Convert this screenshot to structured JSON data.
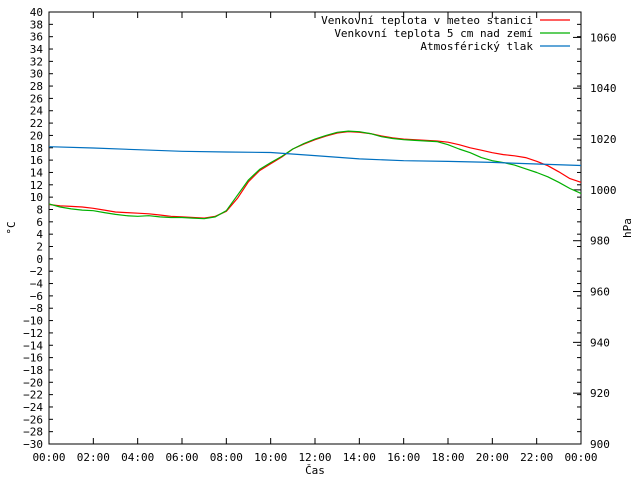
{
  "chart_data": {
    "type": "line",
    "xlabel": "Čas",
    "ylabel": "°C",
    "y2label": "hPa",
    "x_ticks": [
      "00:00",
      "02:00",
      "04:00",
      "06:00",
      "08:00",
      "10:00",
      "12:00",
      "14:00",
      "16:00",
      "18:00",
      "20:00",
      "22:00",
      "00:00"
    ],
    "xlim_hours": [
      0,
      24
    ],
    "ylim": [
      -30,
      40
    ],
    "y_ticks": [
      40,
      38,
      36,
      34,
      32,
      30,
      28,
      26,
      24,
      22,
      20,
      18,
      16,
      14,
      12,
      10,
      8,
      6,
      4,
      2,
      0,
      -2,
      -4,
      -6,
      -8,
      -10,
      -12,
      -14,
      -16,
      -18,
      -20,
      -22,
      -24,
      -26,
      -28,
      -30
    ],
    "y2lim": [
      900,
      1070
    ],
    "y2_ticks": [
      1060,
      1040,
      1020,
      1000,
      980,
      960,
      940,
      920,
      900
    ],
    "grid": false,
    "legend_position": "top-right",
    "series": [
      {
        "name": "Venkovní teplota v meteo stanici",
        "axis": "left",
        "color": "#ff0000",
        "x": [
          0,
          0.5,
          1,
          1.5,
          2,
          2.5,
          3,
          3.5,
          4,
          4.5,
          5,
          5.5,
          6,
          6.5,
          7,
          7.5,
          8,
          8.5,
          9,
          9.5,
          10,
          10.5,
          11,
          11.5,
          12,
          12.5,
          13,
          13.5,
          14,
          14.5,
          15,
          15.5,
          16,
          16.5,
          17,
          17.5,
          18,
          18.5,
          19,
          19.5,
          20,
          20.5,
          21,
          21.5,
          22,
          22.5,
          23,
          23.5,
          24
        ],
        "values": [
          8.8,
          8.6,
          8.5,
          8.4,
          8.2,
          7.9,
          7.6,
          7.5,
          7.4,
          7.3,
          7.1,
          6.9,
          6.8,
          6.7,
          6.6,
          6.9,
          7.7,
          9.8,
          12.5,
          14.3,
          15.4,
          16.5,
          17.8,
          18.6,
          19.3,
          19.9,
          20.4,
          20.6,
          20.5,
          20.3,
          19.9,
          19.6,
          19.4,
          19.3,
          19.2,
          19.1,
          18.9,
          18.5,
          18.0,
          17.6,
          17.2,
          16.9,
          16.7,
          16.4,
          15.8,
          15.1,
          14.1,
          13.0,
          12.4
        ]
      },
      {
        "name": "Venkovní teplota 5 cm nad zemí",
        "axis": "left",
        "color": "#00b000",
        "x": [
          0,
          0.5,
          1,
          1.5,
          2,
          2.5,
          3,
          3.5,
          4,
          4.5,
          5,
          5.5,
          6,
          6.5,
          7,
          7.5,
          8,
          8.5,
          9,
          9.5,
          10,
          10.5,
          11,
          11.5,
          12,
          12.5,
          13,
          13.5,
          14,
          14.5,
          15,
          15.5,
          16,
          16.5,
          17,
          17.5,
          18,
          18.5,
          19,
          19.5,
          20,
          20.5,
          21,
          21.5,
          22,
          22.5,
          23,
          23.5,
          24
        ],
        "values": [
          8.9,
          8.4,
          8.1,
          7.9,
          7.8,
          7.5,
          7.2,
          7.0,
          6.9,
          7.0,
          6.8,
          6.7,
          6.7,
          6.6,
          6.5,
          6.8,
          7.8,
          10.3,
          12.8,
          14.5,
          15.6,
          16.6,
          17.8,
          18.7,
          19.4,
          20.0,
          20.5,
          20.7,
          20.6,
          20.3,
          19.8,
          19.5,
          19.3,
          19.2,
          19.1,
          19.0,
          18.5,
          17.8,
          17.2,
          16.4,
          15.9,
          15.6,
          15.2,
          14.6,
          14.0,
          13.3,
          12.4,
          11.4,
          10.6
        ]
      },
      {
        "name": "Atmosférický tlak",
        "axis": "right",
        "color": "#0070c0",
        "x": [
          0,
          2,
          4,
          6,
          8,
          10,
          12,
          14,
          16,
          18,
          20,
          22,
          24
        ],
        "values": [
          1017.0,
          1016.5,
          1015.8,
          1015.2,
          1014.9,
          1014.7,
          1013.5,
          1012.2,
          1011.5,
          1011.2,
          1010.8,
          1010.2,
          1009.6
        ]
      }
    ]
  }
}
